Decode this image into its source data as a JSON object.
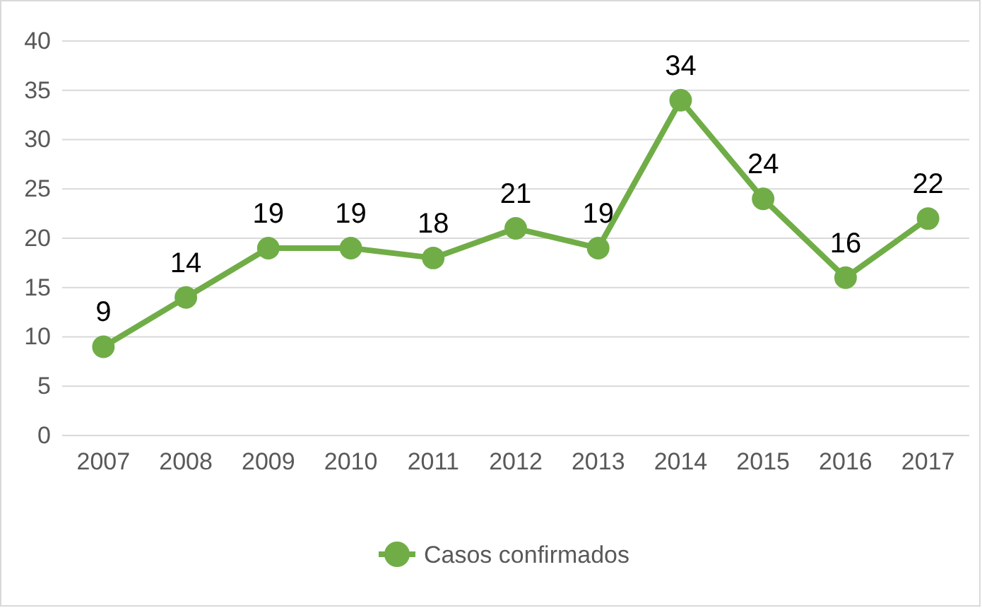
{
  "chart_data": {
    "type": "line",
    "categories": [
      "2007",
      "2008",
      "2009",
      "2010",
      "2011",
      "2012",
      "2013",
      "2014",
      "2015",
      "2016",
      "2017"
    ],
    "series": [
      {
        "name": "Casos confirmados",
        "color": "#70ad47",
        "values": [
          9,
          14,
          19,
          19,
          18,
          21,
          19,
          34,
          24,
          16,
          22
        ]
      }
    ],
    "ylim": [
      0,
      40
    ],
    "yticks": [
      0,
      5,
      10,
      15,
      20,
      25,
      30,
      35,
      40
    ],
    "grid": "y",
    "legend": "bottom",
    "marker": "circle",
    "line_style": "solid",
    "data_labels": true
  }
}
